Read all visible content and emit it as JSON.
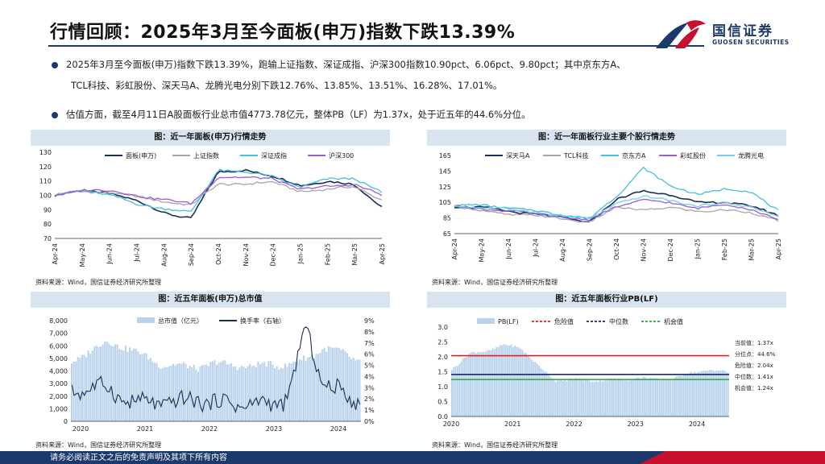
{
  "header": {
    "title": "行情回顾：2025年3月至今面板(申万)指数下跌13.39%",
    "logo_cn": "国信证券",
    "logo_en": "GUOSEN SECURITIES"
  },
  "bullets": {
    "b1_line1": "2025年3月至今面板(申万)指数下跌13.39%，跑输上证指数、深证成指、沪深300指数10.90pct、6.06pct、9.80pct；其中京东方A、",
    "b1_line2": "TCL科技、彩虹股份、深天马A、龙腾光电分别下跌12.76%、13.85%、13.51%、16.28%、17.01%。",
    "b2": "估值方面，截至4月11日A股面板行业总市值4773.78亿元，整体PB（LF）为1.37x，处于近五年的44.6%分位。"
  },
  "colors": {
    "navy": "#1b3a6b",
    "panel": "#d9e4f1",
    "red": "#c8102e"
  },
  "footer": {
    "text": "请务必阅读正文之后的免责声明及其项下所有内容"
  },
  "chart_data": [
    {
      "id": "c1",
      "type": "line",
      "title": "图：近一年面板(申万)行情走势",
      "source": "资料来源：Wind，国信证券经济研究所整理",
      "ylim": [
        70,
        130
      ],
      "yticks": [
        "130",
        "120",
        "110",
        "100",
        "90",
        "80",
        "70"
      ],
      "xticks": [
        "Apr-24",
        "May-24",
        "Jun-24",
        "Jul-24",
        "Aug-24",
        "Sep-24",
        "Oct-24",
        "Nov-24",
        "Dec-24",
        "Jan-25",
        "Feb-25",
        "Mar-25",
        "Apr-25"
      ],
      "series": [
        {
          "name": "面板(申万)",
          "color": "#1b2f55",
          "values": [
            100,
            103,
            102,
            96,
            88,
            84,
            116,
            118,
            113,
            107,
            110,
            107,
            92
          ]
        },
        {
          "name": "上证指数",
          "color": "#a6a6a6",
          "values": [
            100,
            103,
            102,
            99,
            96,
            93,
            108,
            108,
            109,
            103,
            104,
            106,
            97
          ]
        },
        {
          "name": "深证成指",
          "color": "#44bfe0",
          "values": [
            100,
            104,
            100,
            94,
            91,
            88,
            118,
            116,
            113,
            106,
            111,
            112,
            102
          ]
        },
        {
          "name": "沪深300",
          "color": "#9a5cdc",
          "values": [
            100,
            104,
            103,
            100,
            97,
            94,
            113,
            112,
            112,
            104,
            106,
            108,
            100
          ]
        }
      ]
    },
    {
      "id": "c2",
      "type": "line",
      "title": "图：近一年面板行业主要个股行情走势",
      "source": "资料来源：Wind，国信证券经济研究所整理",
      "ylim": [
        65,
        165
      ],
      "yticks": [
        "165",
        "145",
        "125",
        "105",
        "85",
        "65"
      ],
      "xticks": [
        "Apr-24",
        "May-24",
        "Jun-24",
        "Jul-24",
        "Aug-24",
        "Sep-24",
        "Oct-24",
        "Nov-24",
        "Dec-24",
        "Jan-25",
        "Feb-25",
        "Mar-25",
        "Apr-25"
      ],
      "series": [
        {
          "name": "深天马A",
          "color": "#1b2f55",
          "values": [
            100,
            98,
            94,
            90,
            85,
            80,
            108,
            120,
            115,
            104,
            106,
            100,
            88
          ]
        },
        {
          "name": "TCL科技",
          "color": "#a6a6a6",
          "values": [
            100,
            94,
            90,
            88,
            84,
            80,
            98,
            96,
            98,
            93,
            96,
            91,
            82
          ]
        },
        {
          "name": "京东方A",
          "color": "#44bfe0",
          "values": [
            100,
            102,
            98,
            94,
            89,
            84,
            112,
            150,
            125,
            116,
            122,
            118,
            95
          ]
        },
        {
          "name": "彩虹股份",
          "color": "#9a5cdc",
          "values": [
            100,
            97,
            94,
            90,
            86,
            82,
            100,
            108,
            104,
            98,
            102,
            96,
            84
          ]
        },
        {
          "name": "龙腾光电",
          "color": "#6fd0e8",
          "values": [
            100,
            99,
            96,
            93,
            88,
            84,
            104,
            112,
            108,
            100,
            104,
            100,
            86
          ]
        }
      ]
    },
    {
      "id": "c3",
      "type": "bar+line",
      "title": "图：近五年面板(申万)总市值",
      "source": "资料来源：Wind，国信证券经济研究所整理",
      "ylim": [
        0,
        8000
      ],
      "y2lim": [
        0,
        9
      ],
      "yticks": [
        "8,000",
        "7,000",
        "6,000",
        "5,000",
        "4,000",
        "3,000",
        "2,000",
        "1,000",
        "0"
      ],
      "y2ticks": [
        "9%",
        "8%",
        "7%",
        "6%",
        "5%",
        "4%",
        "3%",
        "2%",
        "1%",
        "0%"
      ],
      "xticks": [
        "2020",
        "2021",
        "2022",
        "2023",
        "2024"
      ],
      "series": [
        {
          "name": "总市值（亿元）",
          "color": "#b9d3ec",
          "values": [
            4700,
            5600,
            6300,
            5900,
            5200,
            4500,
            4400,
            4300,
            4600,
            4500,
            4300,
            4600,
            4400,
            5000,
            5800,
            5500,
            4800
          ]
        },
        {
          "name": "换手率（右轴）",
          "color": "#1b2f55",
          "values": [
            2.5,
            3.2,
            2.8,
            2.0,
            1.5,
            1.8,
            1.6,
            2.1,
            1.5,
            1.7,
            1.4,
            1.6,
            2.0,
            8.4,
            3.2,
            2.5,
            1.8
          ]
        }
      ]
    },
    {
      "id": "c4",
      "type": "bar+line",
      "title": "图：近五年面板行业PB(LF)",
      "source": "资料来源：Wind，国信证券经济研究所整理",
      "ylim": [
        0.0,
        3.0
      ],
      "yticks": [
        "3.0",
        "2.5",
        "2.0",
        "1.5",
        "1.0",
        "0.5",
        "0.0"
      ],
      "xticks": [
        "2020",
        "2021",
        "2022",
        "2023",
        "2024"
      ],
      "series": [
        {
          "name": "PB(LF)",
          "color": "#b9d3ec",
          "values": [
            1.6,
            2.1,
            2.2,
            2.4,
            2.3,
            1.7,
            1.2,
            1.25,
            1.2,
            1.22,
            1.25,
            1.3,
            1.25,
            1.3,
            1.5,
            1.55,
            1.5
          ]
        },
        {
          "name": "危险值",
          "color": "#e02020",
          "value": 2.04
        },
        {
          "name": "中位数",
          "color": "#1b2f55",
          "value": 1.41
        },
        {
          "name": "机会值",
          "color": "#2e9e4a",
          "value": 1.24
        }
      ],
      "annotations": [
        "当前值：1.37x",
        "分位点：44.6%",
        "危险值：2.04x",
        "中位数：1.41x",
        "机会值：1.24x"
      ]
    }
  ]
}
